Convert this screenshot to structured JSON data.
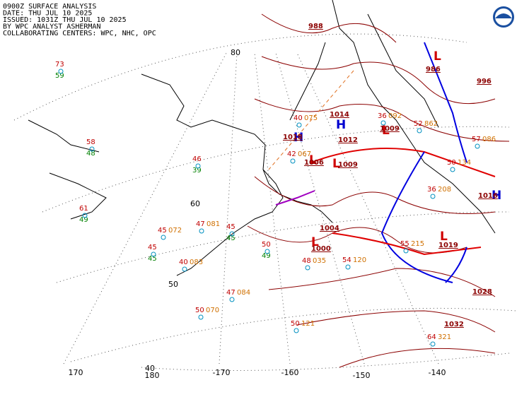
{
  "header": {
    "lines": [
      "0900Z SURFACE ANALYSIS",
      "DATE: THU JUL 10 2025",
      "ISSUED: 1031Z THU JUL 10 2025",
      "BY WPC ANALYST ASHERMAN",
      "COLLABORATING CENTERS: WPC, NHC, OPC"
    ]
  },
  "graticule_labels": [
    "80",
    "60",
    "50",
    "40",
    "180",
    "170",
    "-170",
    "-160",
    "-150",
    "-140"
  ],
  "pressure_centers": [
    {
      "symbol": "H",
      "value": "1018"
    },
    {
      "symbol": "H",
      "value": "1014"
    },
    {
      "symbol": "L",
      "value": "1006"
    },
    {
      "symbol": "L",
      "value": "1009"
    },
    {
      "symbol": "L",
      "value": "1009"
    },
    {
      "symbol": "L",
      "value": "1000"
    },
    {
      "symbol": "L",
      "value": "1019"
    },
    {
      "symbol": "H",
      "value": "1016"
    },
    {
      "symbol": "L",
      "value": "986"
    }
  ],
  "isobar_labels": [
    "988",
    "1012",
    "1004",
    "1032",
    "1028",
    "996"
  ],
  "stations": [
    {
      "temp": "73",
      "dew": "59"
    },
    {
      "temp": "58",
      "dew": "48"
    },
    {
      "temp": "61",
      "dew": "49"
    },
    {
      "temp": "46",
      "dew": "39"
    },
    {
      "temp": "47",
      "dew": "081"
    },
    {
      "temp": "45",
      "dew": "072"
    },
    {
      "temp": "45",
      "dew": "45"
    },
    {
      "temp": "40",
      "dew": "083"
    },
    {
      "temp": "45",
      "dew": "45"
    },
    {
      "temp": "50",
      "dew": "49"
    },
    {
      "temp": "48",
      "dew": "035"
    },
    {
      "temp": "54",
      "dew": "120"
    },
    {
      "temp": "50",
      "dew": "121"
    },
    {
      "temp": "47",
      "dew": "084"
    },
    {
      "temp": "50",
      "dew": "070"
    },
    {
      "temp": "55",
      "dew": "215"
    },
    {
      "temp": "64",
      "dew": "321"
    },
    {
      "temp": "36",
      "dew": "092"
    },
    {
      "temp": "52",
      "dew": "862"
    },
    {
      "temp": "57",
      "dew": "086"
    },
    {
      "temp": "50",
      "dew": "134"
    },
    {
      "temp": "40",
      "dew": "075"
    },
    {
      "temp": "42",
      "dew": "067"
    },
    {
      "temp": "36",
      "dew": "208"
    }
  ]
}
